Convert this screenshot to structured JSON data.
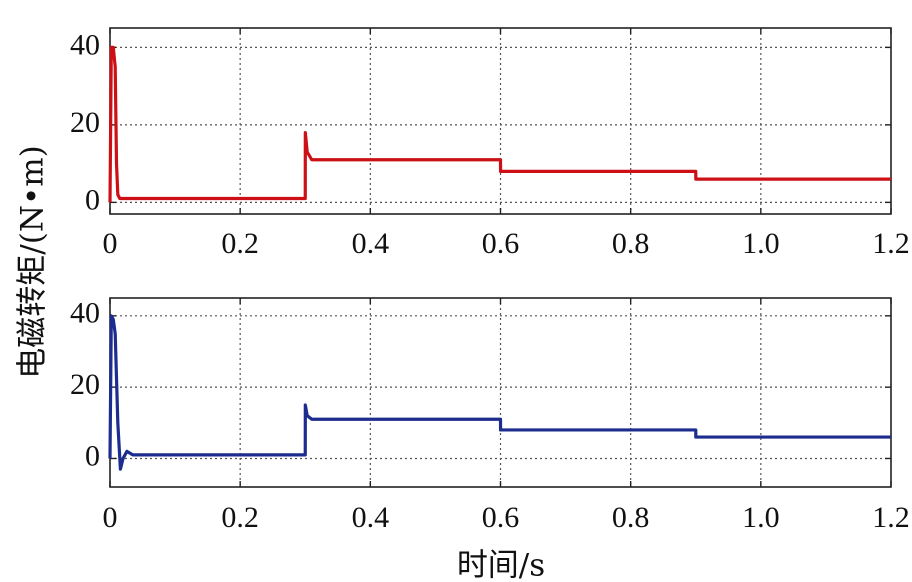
{
  "chart_data": [
    {
      "type": "line",
      "xlim": [
        0,
        1.2
      ],
      "ylim": [
        -3,
        45
      ],
      "x_ticks": [
        0,
        0.2,
        0.4,
        0.6,
        0.8,
        1.0,
        1.2
      ],
      "x_tick_labels": [
        "0",
        "0.2",
        "0.4",
        "0.6",
        "0.8",
        "1.0",
        "1.2"
      ],
      "y_ticks": [
        0,
        20,
        40
      ],
      "y_tick_labels": [
        "0",
        "20",
        "40"
      ],
      "grid": true,
      "series": [
        {
          "color": "#cc1016",
          "x": [
            0,
            0.002,
            0.005,
            0.008,
            0.01,
            0.012,
            0.015,
            0.3,
            0.3001,
            0.303,
            0.31,
            0.6,
            0.6001,
            0.9,
            0.9001,
            1.2
          ],
          "y": [
            0,
            40,
            40,
            35,
            10,
            2,
            1,
            1,
            18,
            13,
            11,
            11,
            8,
            8,
            6,
            6
          ]
        }
      ]
    },
    {
      "type": "line",
      "xlim": [
        0,
        1.2
      ],
      "ylim": [
        -8,
        45
      ],
      "x_ticks": [
        0,
        0.2,
        0.4,
        0.6,
        0.8,
        1.0,
        1.2
      ],
      "x_tick_labels": [
        "0",
        "0.2",
        "0.4",
        "0.6",
        "0.8",
        "1.0",
        "1.2"
      ],
      "y_ticks": [
        0,
        20,
        40
      ],
      "y_tick_labels": [
        "0",
        "20",
        "40"
      ],
      "grid": true,
      "series": [
        {
          "color": "#1c2d8f",
          "x": [
            0,
            0.002,
            0.005,
            0.008,
            0.012,
            0.016,
            0.02,
            0.026,
            0.035,
            0.3,
            0.3001,
            0.303,
            0.31,
            0.6,
            0.6001,
            0.9,
            0.9001,
            1.2
          ],
          "y": [
            0,
            40,
            39,
            35,
            10,
            -3,
            0,
            2,
            1,
            1,
            15,
            12,
            11,
            11,
            8,
            8,
            6,
            6
          ]
        }
      ]
    }
  ],
  "labels": {
    "ylabel": "电磁转矩/(N•m)",
    "xlabel": "时间/s"
  }
}
